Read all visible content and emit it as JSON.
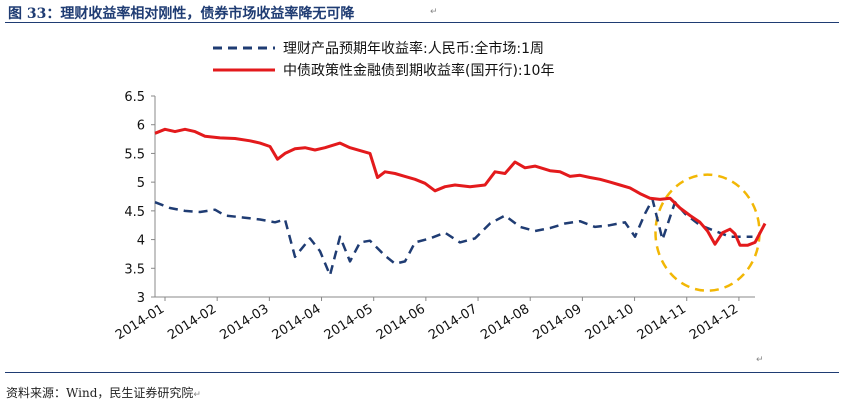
{
  "figure": {
    "title": "图 33：理财收益率相对刚性，债券市场收益率降无可降",
    "source": "资料来源：Wind，民生证券研究院"
  },
  "colors": {
    "title": "#1f3c73",
    "series_dashed": "#1f3c73",
    "series_solid": "#e31a1c",
    "highlight_circle": "#f2b705"
  },
  "chart_data": {
    "type": "line",
    "title": "",
    "xlabel": "",
    "ylabel": "",
    "ylim": [
      3,
      6.5
    ],
    "yticks": [
      "3",
      "3.5",
      "4",
      "4.5",
      "5",
      "5.5",
      "6",
      "6.5"
    ],
    "xticks": [
      "2014-01",
      "2014-02",
      "2014-03",
      "2014-04",
      "2014-05",
      "2014-06",
      "2014-07",
      "2014-08",
      "2014-09",
      "2014-10",
      "2014-11",
      "2014-12"
    ],
    "grid": false,
    "legend_position": "top",
    "annotation": "dashed yellow circle highlighting Nov–Dec 2014",
    "series": [
      {
        "name": "理财产品预期年收益率:人民币:全市场:1周",
        "style": "dashed",
        "color": "#1f3c73",
        "points": [
          [
            0.0,
            4.65
          ],
          [
            0.3,
            4.55
          ],
          [
            0.6,
            4.5
          ],
          [
            0.9,
            4.48
          ],
          [
            1.2,
            4.52
          ],
          [
            1.4,
            4.42
          ],
          [
            1.8,
            4.38
          ],
          [
            2.1,
            4.35
          ],
          [
            2.4,
            4.3
          ],
          [
            2.6,
            4.35
          ],
          [
            2.8,
            3.7
          ],
          [
            3.1,
            4.02
          ],
          [
            3.3,
            3.8
          ],
          [
            3.5,
            3.38
          ],
          [
            3.7,
            4.05
          ],
          [
            3.9,
            3.62
          ],
          [
            4.1,
            3.95
          ],
          [
            4.3,
            3.98
          ],
          [
            4.6,
            3.72
          ],
          [
            4.8,
            3.58
          ],
          [
            5.0,
            3.62
          ],
          [
            5.2,
            3.95
          ],
          [
            5.5,
            4.02
          ],
          [
            5.8,
            4.12
          ],
          [
            6.1,
            3.95
          ],
          [
            6.4,
            4.02
          ],
          [
            6.7,
            4.28
          ],
          [
            7.0,
            4.42
          ],
          [
            7.3,
            4.22
          ],
          [
            7.6,
            4.15
          ],
          [
            7.9,
            4.2
          ],
          [
            8.2,
            4.28
          ],
          [
            8.5,
            4.32
          ],
          [
            8.8,
            4.22
          ],
          [
            9.1,
            4.25
          ],
          [
            9.4,
            4.3
          ],
          [
            9.6,
            4.05
          ],
          [
            9.8,
            4.45
          ],
          [
            9.95,
            4.7
          ],
          [
            10.15,
            4.0
          ],
          [
            10.4,
            4.65
          ],
          [
            10.6,
            4.45
          ],
          [
            10.9,
            4.25
          ],
          [
            11.2,
            4.15
          ],
          [
            11.5,
            4.05
          ],
          [
            11.75,
            4.05
          ],
          [
            11.95,
            4.05
          ]
        ]
      },
      {
        "name": "中债政策性金融债到期收益率(国开行):10年",
        "style": "solid",
        "color": "#e31a1c",
        "points": [
          [
            0.0,
            5.85
          ],
          [
            0.2,
            5.92
          ],
          [
            0.4,
            5.88
          ],
          [
            0.6,
            5.92
          ],
          [
            0.8,
            5.88
          ],
          [
            1.0,
            5.8
          ],
          [
            1.3,
            5.77
          ],
          [
            1.6,
            5.76
          ],
          [
            1.9,
            5.72
          ],
          [
            2.1,
            5.68
          ],
          [
            2.3,
            5.62
          ],
          [
            2.45,
            5.4
          ],
          [
            2.6,
            5.5
          ],
          [
            2.8,
            5.58
          ],
          [
            3.0,
            5.6
          ],
          [
            3.2,
            5.56
          ],
          [
            3.4,
            5.6
          ],
          [
            3.7,
            5.68
          ],
          [
            3.9,
            5.6
          ],
          [
            4.1,
            5.55
          ],
          [
            4.3,
            5.5
          ],
          [
            4.45,
            5.08
          ],
          [
            4.6,
            5.18
          ],
          [
            4.8,
            5.15
          ],
          [
            5.0,
            5.1
          ],
          [
            5.2,
            5.05
          ],
          [
            5.4,
            4.98
          ],
          [
            5.6,
            4.85
          ],
          [
            5.8,
            4.92
          ],
          [
            6.0,
            4.95
          ],
          [
            6.3,
            4.92
          ],
          [
            6.6,
            4.95
          ],
          [
            6.8,
            5.18
          ],
          [
            7.0,
            5.15
          ],
          [
            7.2,
            5.35
          ],
          [
            7.4,
            5.25
          ],
          [
            7.6,
            5.28
          ],
          [
            7.9,
            5.2
          ],
          [
            8.1,
            5.18
          ],
          [
            8.3,
            5.1
          ],
          [
            8.5,
            5.12
          ],
          [
            8.7,
            5.08
          ],
          [
            8.9,
            5.05
          ],
          [
            9.1,
            5.0
          ],
          [
            9.3,
            4.95
          ],
          [
            9.5,
            4.9
          ],
          [
            9.7,
            4.8
          ],
          [
            9.9,
            4.72
          ],
          [
            10.1,
            4.7
          ],
          [
            10.3,
            4.72
          ],
          [
            10.5,
            4.55
          ],
          [
            10.7,
            4.42
          ],
          [
            10.9,
            4.3
          ],
          [
            11.05,
            4.15
          ],
          [
            11.2,
            3.92
          ],
          [
            11.35,
            4.12
          ],
          [
            11.5,
            4.18
          ],
          [
            11.6,
            4.1
          ],
          [
            11.7,
            3.9
          ],
          [
            11.85,
            3.9
          ],
          [
            12.0,
            3.95
          ],
          [
            12.2,
            4.28
          ]
        ]
      }
    ]
  }
}
